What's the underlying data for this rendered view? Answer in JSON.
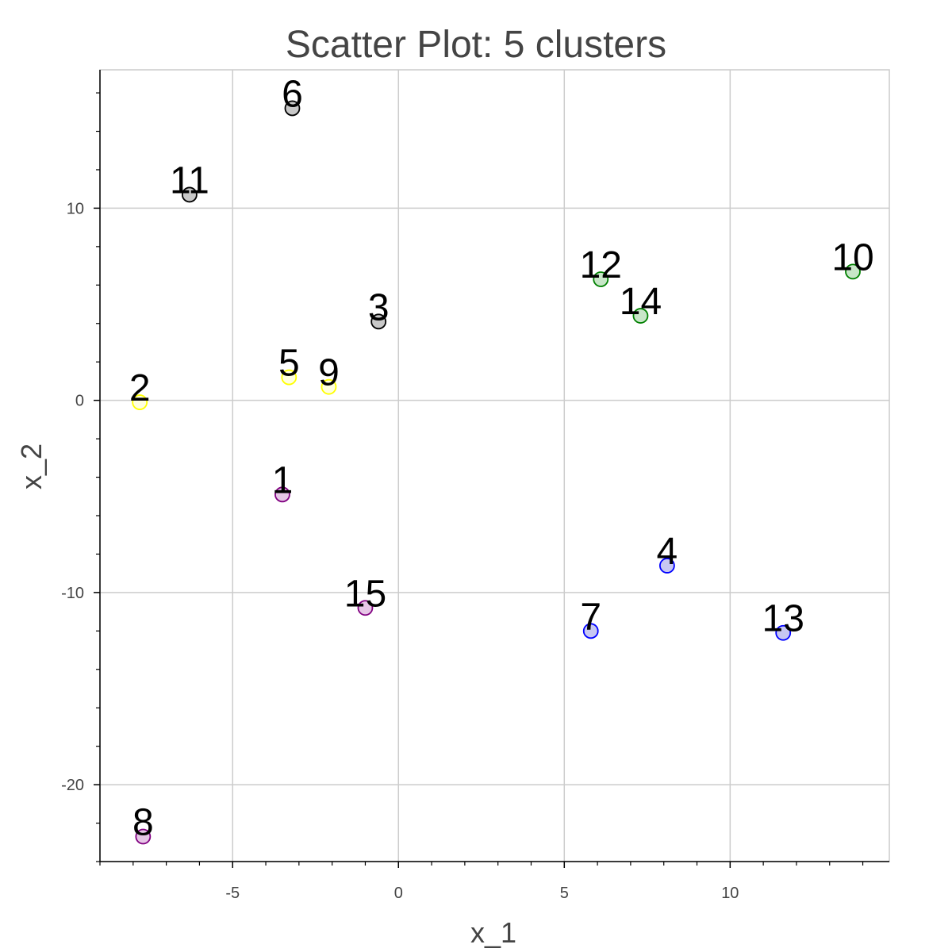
{
  "chart_data": {
    "type": "scatter",
    "title": "Scatter Plot: 5 clusters",
    "xlabel": "x_1",
    "ylabel": "x_2",
    "xlim": [
      -9,
      14.8
    ],
    "ylim": [
      -24,
      17.2
    ],
    "x_ticks": [
      -5,
      0,
      5,
      10
    ],
    "x_tick_labels": [
      "-5",
      "0",
      "5",
      "10"
    ],
    "y_ticks": [
      -20,
      -10,
      0,
      10
    ],
    "y_tick_labels": [
      "-20",
      "-10",
      "0",
      "10"
    ],
    "grid": true,
    "legend": "none",
    "cluster_colors": {
      "purple": {
        "stroke": "#800080",
        "fill": "#e6c6e6"
      },
      "yellow": {
        "stroke": "#ffff00",
        "fill": "#ffffe0"
      },
      "gray": {
        "stroke": "#000000",
        "fill": "#c8c8c8"
      },
      "blue": {
        "stroke": "#0000ff",
        "fill": "#c8c8f2"
      },
      "green": {
        "stroke": "#008000",
        "fill": "#c8e6c8"
      }
    },
    "points": [
      {
        "label": "1",
        "x": -3.5,
        "y": -4.9,
        "cluster": "purple"
      },
      {
        "label": "2",
        "x": -7.8,
        "y": -0.1,
        "cluster": "yellow"
      },
      {
        "label": "3",
        "x": -0.6,
        "y": 4.1,
        "cluster": "gray"
      },
      {
        "label": "4",
        "x": 8.1,
        "y": -8.6,
        "cluster": "blue"
      },
      {
        "label": "5",
        "x": -3.3,
        "y": 1.2,
        "cluster": "yellow"
      },
      {
        "label": "6",
        "x": -3.2,
        "y": 15.2,
        "cluster": "gray"
      },
      {
        "label": "7",
        "x": 5.8,
        "y": -12.0,
        "cluster": "blue"
      },
      {
        "label": "8",
        "x": -7.7,
        "y": -22.7,
        "cluster": "purple"
      },
      {
        "label": "9",
        "x": -2.1,
        "y": 0.7,
        "cluster": "yellow"
      },
      {
        "label": "10",
        "x": 13.7,
        "y": 6.7,
        "cluster": "green"
      },
      {
        "label": "11",
        "x": -6.3,
        "y": 10.7,
        "cluster": "gray"
      },
      {
        "label": "12",
        "x": 6.1,
        "y": 6.3,
        "cluster": "green"
      },
      {
        "label": "13",
        "x": 11.6,
        "y": -12.1,
        "cluster": "blue"
      },
      {
        "label": "14",
        "x": 7.3,
        "y": 4.4,
        "cluster": "green"
      },
      {
        "label": "15",
        "x": -1.0,
        "y": -10.8,
        "cluster": "purple"
      }
    ]
  }
}
